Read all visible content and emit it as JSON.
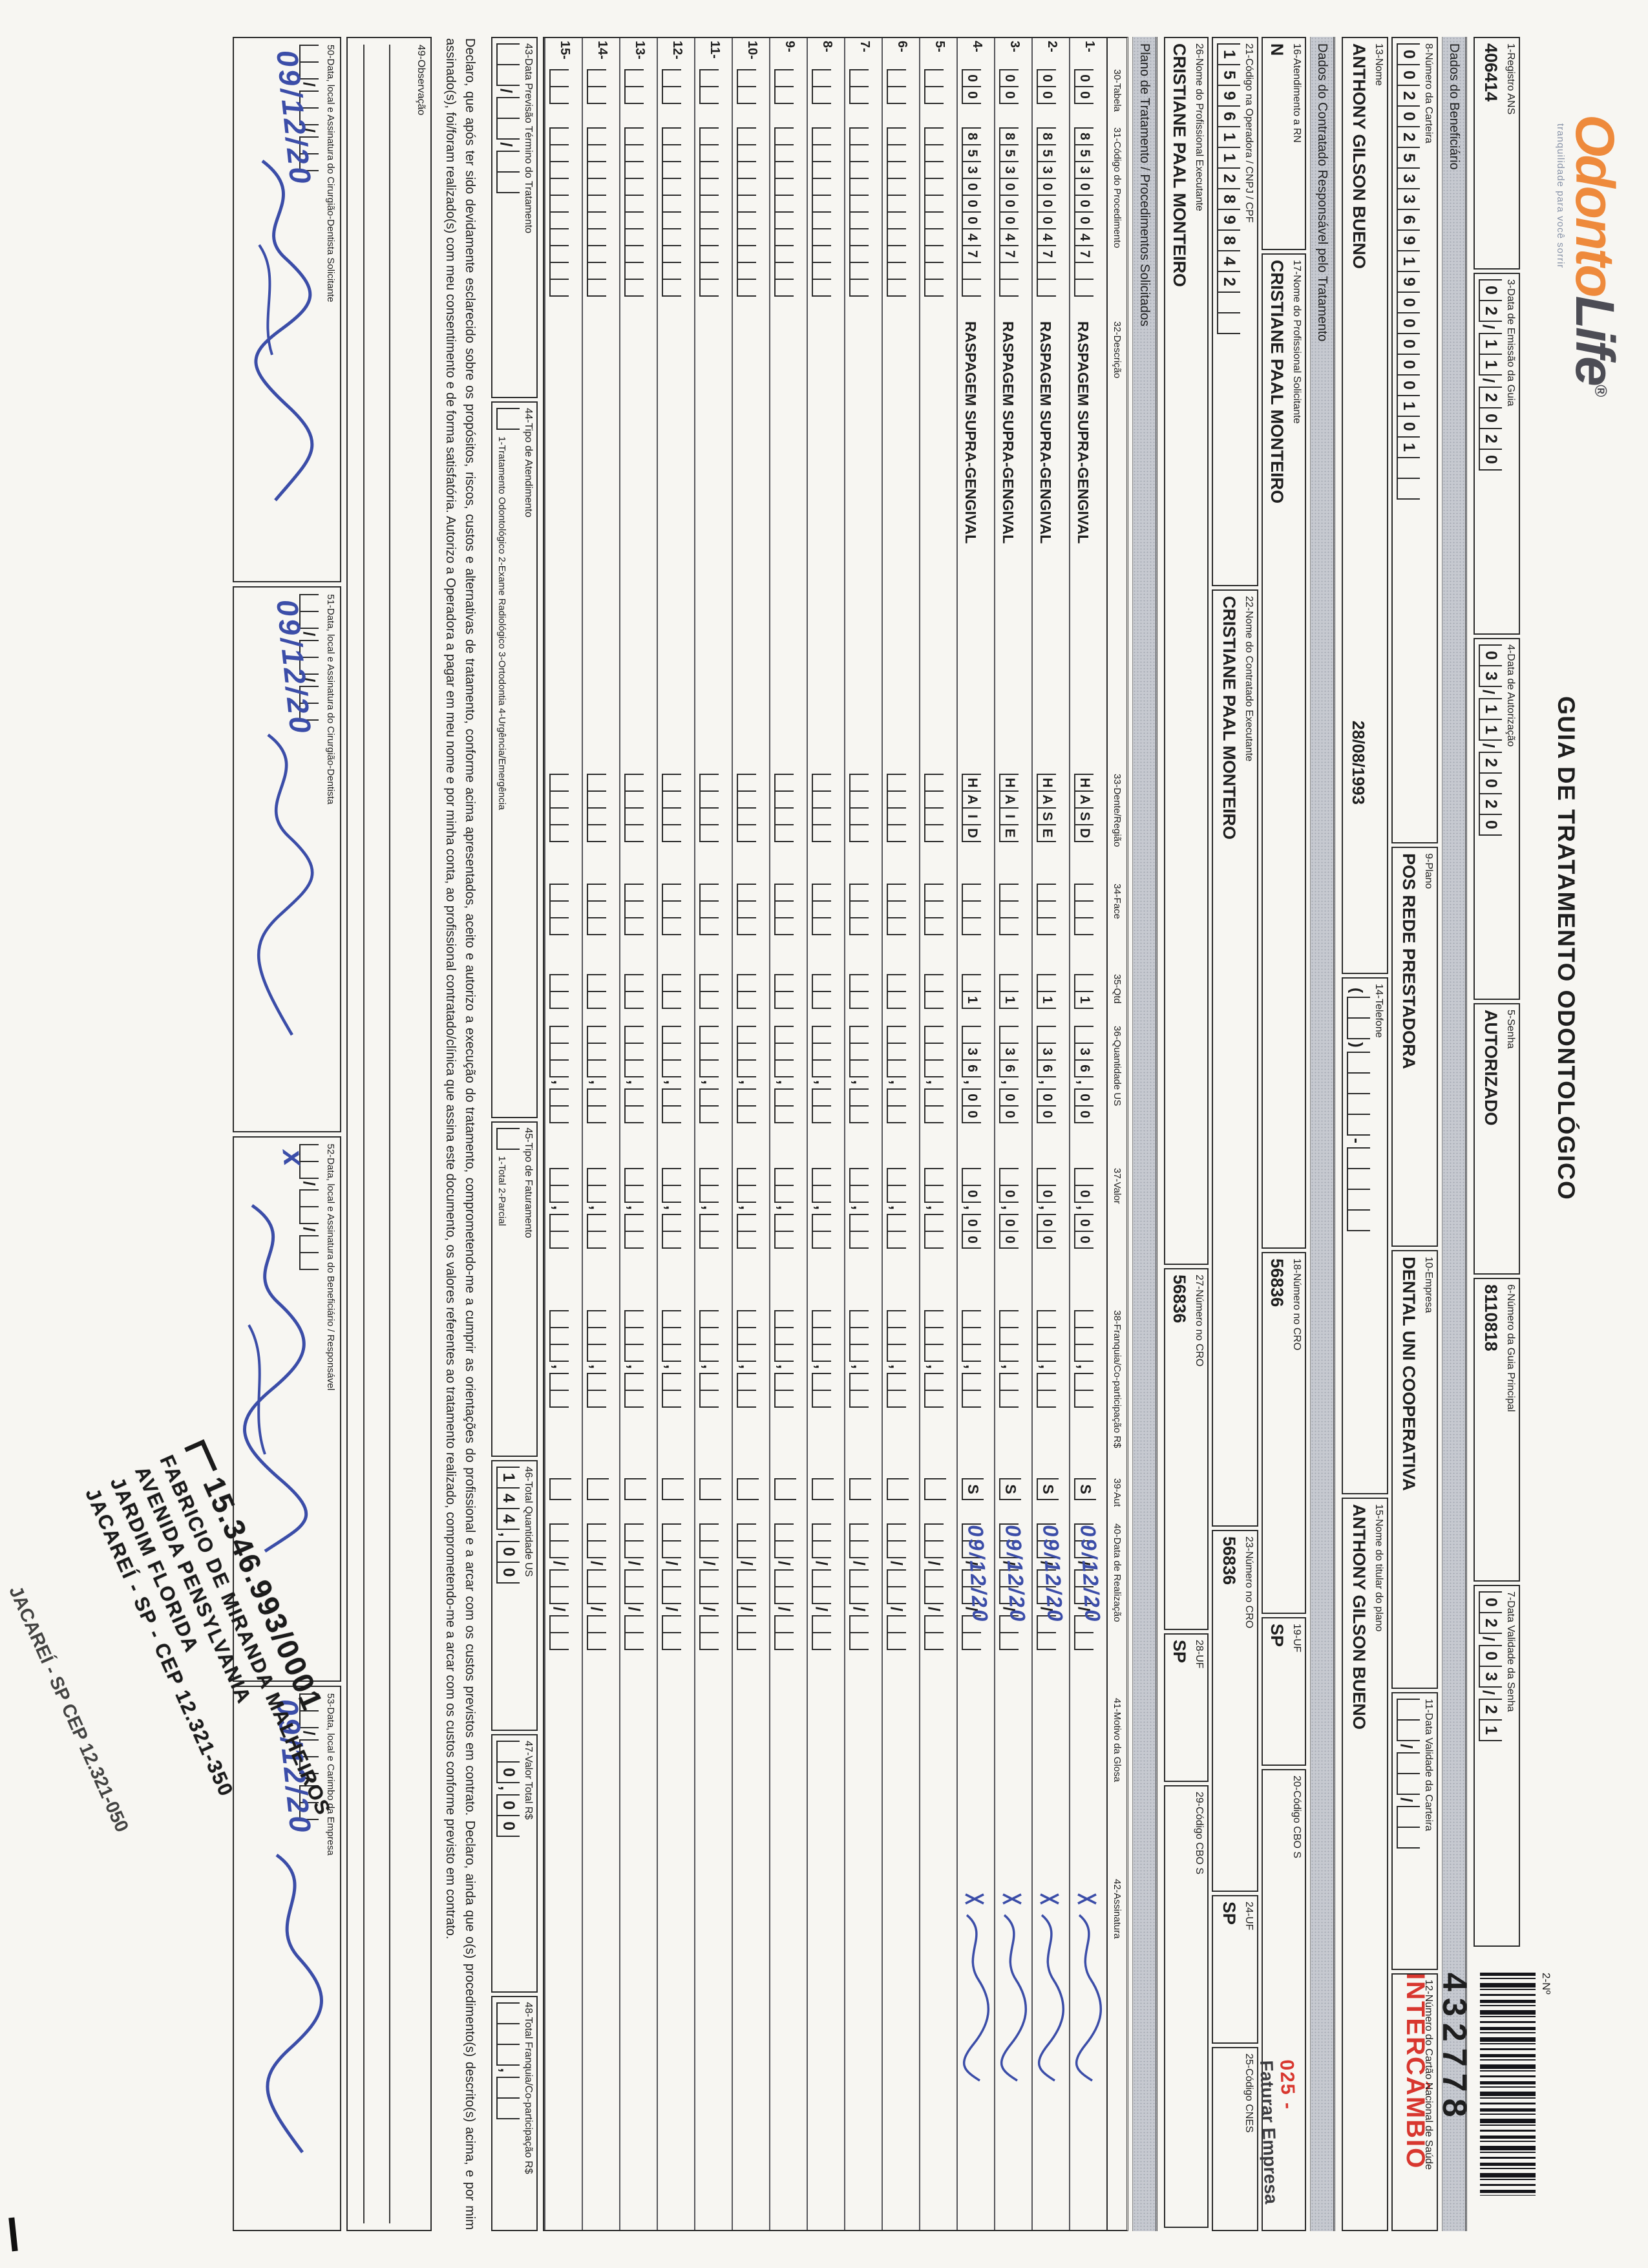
{
  "header": {
    "logo_odonto": "Odonto",
    "logo_life": "Life",
    "logo_reg": "®",
    "logo_tagline": "tranquilidade para você sorrir",
    "title": "GUIA DE TRATAMENTO ODONTOLÓGICO",
    "number_label": "2-Nº",
    "number_value": "432778",
    "intercambio": "INTERCÂMBIO"
  },
  "sections": {
    "beneficiario": "Dados do Beneficiário",
    "contratado": "Dados do Contratado Responsável pelo Tratamento",
    "plano": "Plano de Tratamento / Procedimentos Solicitados"
  },
  "fields": {
    "f1": {
      "label": "1-Registro ANS",
      "value": "406414"
    },
    "f3": {
      "label": "3-Data de Emissão da Guia",
      "comb": "0 2 / 1 1 / 2 0 2 0"
    },
    "f4": {
      "label": "4-Data de Autorização",
      "comb": "0 3 / 1 1 / 2 0 2 0"
    },
    "f5": {
      "label": "5-Senha",
      "value": "AUTORIZADO"
    },
    "f6": {
      "label": "6-Número da Guia Principal",
      "value": "8110818"
    },
    "f7": {
      "label": "7-Data Validade da Senha",
      "comb": "0 2 / 0 3 / 2 1"
    },
    "f8": {
      "label": "8-Número da Carteira",
      "comb": "0 0 2 0 2 5 3 3 6 9 1 9 0 0 0 0 0 1 0 1 _ _"
    },
    "f9": {
      "label": "9-Plano",
      "value": "POS REDE PRESTADORA"
    },
    "f10": {
      "label": "10-Empresa",
      "value": "DENTAL UNI  COOPERATIVA"
    },
    "f11": {
      "label": "11-Data Validade da Carteira",
      "comb": "_ _ / _ _ / _ _"
    },
    "f12": {
      "label": "12-Número do Cartão Nacional de Saúde",
      "value": ""
    },
    "f13": {
      "label": "13-Nome",
      "value": "ANTHONY GILSON BUENO",
      "birth": "28/08/1993"
    },
    "f14": {
      "label": "14-Telefone",
      "comb": "( _ _ ) _ _ _ _ - _ _ _ _"
    },
    "f15": {
      "label": "15-Nome do titular do plano",
      "value": "ANTHONY GILSON BUENO"
    },
    "f16": {
      "label": "16-Atendimento a RN",
      "value": "N"
    },
    "f17": {
      "label": "17-Nome do Profissional Solicitante",
      "value": "CRISTIANE PAAL MONTEIRO"
    },
    "f18": {
      "label": "18-Número no CRO",
      "value": "56836"
    },
    "f19": {
      "label": "19-UF",
      "value": "SP"
    },
    "f20": {
      "label": "20-Código CBO S",
      "value": ""
    },
    "f21": {
      "label": "21-Código na Operadora / CNPJ / CPF",
      "comb": "1 5 9 6 1 1 2 8 9 8 4 2 _ _"
    },
    "f22": {
      "label": "22-Nome do Contratado Executante",
      "value": "CRISTIANE PAAL MONTEIRO"
    },
    "f23": {
      "label": "23-Número no CRO",
      "value": "56836"
    },
    "f24": {
      "label": "24-UF",
      "value": "SP"
    },
    "f25": {
      "label": "25-Código CNES",
      "value": ""
    },
    "f26": {
      "label": "26-Nome do Profissional Executante",
      "value": "CRISTIANE PAAL MONTEIRO"
    },
    "f27": {
      "label": "27-Número no CRO",
      "value": "56836"
    },
    "f28": {
      "label": "28-UF",
      "value": "SP"
    },
    "f29": {
      "label": "29-Código CBO S",
      "value": ""
    },
    "f43": {
      "label": "43-Data Previsão Término do Tratamento",
      "comb": "_ _ / _ _ / _ _"
    },
    "f44": {
      "label": "44-Tipo de Atendimento",
      "comb": "_",
      "legend": "1-Tratamento Odontológico  2-Exame Radiológico  3-Ortodontia  4-Urgência/Emergência"
    },
    "f45": {
      "label": "45-Tipo de Faturamento",
      "comb": "_",
      "legend": "1-Total  2-Parcial"
    },
    "f46": {
      "label": "46-Total Quantidade US",
      "comb": "1 4 4 , 0 0"
    },
    "f47": {
      "label": "47-Valor Total R$",
      "comb": "_ 0 , 0 0"
    },
    "f48": {
      "label": "48-Total Franquia/Co-participação R$",
      "comb": "_ _ _ , _ _"
    },
    "f49": {
      "label": "49-Observação"
    },
    "f50": {
      "label": "50-Data, local e Assinatura do Cirurgião-Dentista Solicitante",
      "comb": "_ _ / _ _ / _ _",
      "hand": "09/12/20"
    },
    "f51": {
      "label": "51-Data, local e Assinatura do Cirurgião-Dentista",
      "comb": "_ _ / _ _ / _ _",
      "hand": "09/12/20"
    },
    "f52": {
      "label": "52-Data, local e Assinatura do Beneficiário / Responsável",
      "comb": "_ _ / _ _ / _ _",
      "hand": "x"
    },
    "f53": {
      "label": "53-Data, local e Carimbo da Empresa",
      "comb": "_ _ / _ _ / _ _",
      "hand": "09/12/20"
    }
  },
  "declaration": {
    "text": "Declaro, que após ter sido devidamente esclarecido sobre os propósitos, riscos, custos e alternativas de tratamento, conforme acima apresentados, aceito e autorizo a execução do tratamento, comprometendo-me a cumprir as orientações do profissional e a arcar com os custos previstos em contrato. Declaro, ainda que o(s) procedimento(s) descrito(s) acima, e por mim assinado(s), foi/foram realizado(s) com meu consentimento e de forma satisfatória. Autorizo a Operadora a pagar em meu nome e por minha conta, ao profissional contratado/clínica que assina este documento, os valores referentes ao tratamento realizado, comprometendo-me a arcar com os custos conforme previsto em contrato."
  },
  "stamps": {
    "cbo_code": "025 -",
    "cbo_text": "Faturar Empresa",
    "provider_cnpj": "15.346.993/0001",
    "provider_lines": [
      "FABRICIO DE MIRANDA MALHEIROS",
      "AVENIDA PENSYLVANIA",
      "JARDIM FLORIDA",
      "JACAREÍ - SP - CEP 12.321-350"
    ],
    "second_impression": "JACAREÍ - SP  CEP 12.321-050"
  },
  "table": {
    "headers": {
      "h30": "30-Tabela",
      "h31": "31-Código do Procedimento",
      "h32": "32-Descrição",
      "h33": "33-Dente/Região",
      "h34": "34-Face",
      "h35": "35-Qtd",
      "h36": "36-Quantidade US",
      "h37": "37-Valor",
      "h38": "38-Franquia/Co-participação R$",
      "h39": "39-Aut",
      "h40": "40-Data de Realização",
      "h41": "41-Motivo da Glosa",
      "h42": "42-Assinatura"
    },
    "rows": [
      {
        "num": "1-",
        "tabela": "0 0",
        "codigo": "8 5 3 0 0 0 4 7 _ _",
        "desc": "RASPAGEM SUPRA-GENGIVAL",
        "dente": "H A S D",
        "face": "_ _ _",
        "qtd": "_ 1",
        "us": "_ 3 6 , 0 0",
        "valor": "_ 0 , 0 0",
        "franquia": "_ _ _ , _ _",
        "aut": "S",
        "data": "_ _ / _ _ / _ _",
        "hand": "09/12/20",
        "sig": true
      },
      {
        "num": "2-",
        "tabela": "0 0",
        "codigo": "8 5 3 0 0 0 4 7 _ _",
        "desc": "RASPAGEM SUPRA-GENGIVAL",
        "dente": "H A S E",
        "face": "_ _ _",
        "qtd": "_ 1",
        "us": "_ 3 6 , 0 0",
        "valor": "_ 0 , 0 0",
        "franquia": "_ _ _ , _ _",
        "aut": "S",
        "data": "_ _ / _ _ / _ _",
        "hand": "09/12/20",
        "sig": true
      },
      {
        "num": "3-",
        "tabela": "0 0",
        "codigo": "8 5 3 0 0 0 4 7 _ _",
        "desc": "RASPAGEM SUPRA-GENGIVAL",
        "dente": "H A I E",
        "face": "_ _ _",
        "qtd": "_ 1",
        "us": "_ 3 6 , 0 0",
        "valor": "_ 0 , 0 0",
        "franquia": "_ _ _ , _ _",
        "aut": "S",
        "data": "_ _ / _ _ / _ _",
        "hand": "09/12/20",
        "sig": true
      },
      {
        "num": "4-",
        "tabela": "0 0",
        "codigo": "8 5 3 0 0 0 4 7 _ _",
        "desc": "RASPAGEM SUPRA-GENGIVAL",
        "dente": "H A I D",
        "face": "_ _ _",
        "qtd": "_ 1",
        "us": "_ 3 6 , 0 0",
        "valor": "_ 0 , 0 0",
        "franquia": "_ _ _ , _ _",
        "aut": "S",
        "data": "_ _ / _ _ / _ _",
        "hand": "09/12/20",
        "sig": true
      },
      {
        "num": "5-",
        "tabela": "_ _",
        "codigo": "_ _ _ _ _ _ _ _ _ _",
        "desc": "",
        "dente": "_ _ _ _",
        "face": "_ _ _",
        "qtd": "_ _",
        "us": "_ _ _ , _ _",
        "valor": "_ _ , _ _",
        "franquia": "_ _ _ , _ _",
        "aut": "",
        "data": "_ _ / _ _ / _ _",
        "hand": "",
        "sig": false
      },
      {
        "num": "6-",
        "tabela": "_ _",
        "codigo": "_ _ _ _ _ _ _ _ _ _",
        "desc": "",
        "dente": "_ _ _ _",
        "face": "_ _ _",
        "qtd": "_ _",
        "us": "_ _ _ , _ _",
        "valor": "_ _ , _ _",
        "franquia": "_ _ _ , _ _",
        "aut": "",
        "data": "_ _ / _ _ / _ _",
        "hand": "",
        "sig": false
      },
      {
        "num": "7-",
        "tabela": "_ _",
        "codigo": "_ _ _ _ _ _ _ _ _ _",
        "desc": "",
        "dente": "_ _ _ _",
        "face": "_ _ _",
        "qtd": "_ _",
        "us": "_ _ _ , _ _",
        "valor": "_ _ , _ _",
        "franquia": "_ _ _ , _ _",
        "aut": "",
        "data": "_ _ / _ _ / _ _",
        "hand": "",
        "sig": false
      },
      {
        "num": "8-",
        "tabela": "_ _",
        "codigo": "_ _ _ _ _ _ _ _ _ _",
        "desc": "",
        "dente": "_ _ _ _",
        "face": "_ _ _",
        "qtd": "_ _",
        "us": "_ _ _ , _ _",
        "valor": "_ _ , _ _",
        "franquia": "_ _ _ , _ _",
        "aut": "",
        "data": "_ _ / _ _ / _ _",
        "hand": "",
        "sig": false
      },
      {
        "num": "9-",
        "tabela": "_ _",
        "codigo": "_ _ _ _ _ _ _ _ _ _",
        "desc": "",
        "dente": "_ _ _ _",
        "face": "_ _ _",
        "qtd": "_ _",
        "us": "_ _ _ , _ _",
        "valor": "_ _ , _ _",
        "franquia": "_ _ _ , _ _",
        "aut": "",
        "data": "_ _ / _ _ / _ _",
        "hand": "",
        "sig": false
      },
      {
        "num": "10-",
        "tabela": "_ _",
        "codigo": "_ _ _ _ _ _ _ _ _ _",
        "desc": "",
        "dente": "_ _ _ _",
        "face": "_ _ _",
        "qtd": "_ _",
        "us": "_ _ _ , _ _",
        "valor": "_ _ , _ _",
        "franquia": "_ _ _ , _ _",
        "aut": "",
        "data": "_ _ / _ _ / _ _",
        "hand": "",
        "sig": false
      },
      {
        "num": "11-",
        "tabela": "_ _",
        "codigo": "_ _ _ _ _ _ _ _ _ _",
        "desc": "",
        "dente": "_ _ _ _",
        "face": "_ _ _",
        "qtd": "_ _",
        "us": "_ _ _ , _ _",
        "valor": "_ _ , _ _",
        "franquia": "_ _ _ , _ _",
        "aut": "",
        "data": "_ _ / _ _ / _ _",
        "hand": "",
        "sig": false
      },
      {
        "num": "12-",
        "tabela": "_ _",
        "codigo": "_ _ _ _ _ _ _ _ _ _",
        "desc": "",
        "dente": "_ _ _ _",
        "face": "_ _ _",
        "qtd": "_ _",
        "us": "_ _ _ , _ _",
        "valor": "_ _ , _ _",
        "franquia": "_ _ _ , _ _",
        "aut": "",
        "data": "_ _ / _ _ / _ _",
        "hand": "",
        "sig": false
      },
      {
        "num": "13-",
        "tabela": "_ _",
        "codigo": "_ _ _ _ _ _ _ _ _ _",
        "desc": "",
        "dente": "_ _ _ _",
        "face": "_ _ _",
        "qtd": "_ _",
        "us": "_ _ _ , _ _",
        "valor": "_ _ , _ _",
        "franquia": "_ _ _ , _ _",
        "aut": "",
        "data": "_ _ / _ _ / _ _",
        "hand": "",
        "sig": false
      },
      {
        "num": "14-",
        "tabela": "_ _",
        "codigo": "_ _ _ _ _ _ _ _ _ _",
        "desc": "",
        "dente": "_ _ _ _",
        "face": "_ _ _",
        "qtd": "_ _",
        "us": "_ _ _ , _ _",
        "valor": "_ _ , _ _",
        "franquia": "_ _ _ , _ _",
        "aut": "",
        "data": "_ _ / _ _ / _ _",
        "hand": "",
        "sig": false
      },
      {
        "num": "15-",
        "tabela": "_ _",
        "codigo": "_ _ _ _ _ _ _ _ _ _",
        "desc": "",
        "dente": "_ _ _ _",
        "face": "_ _ _",
        "qtd": "_ _",
        "us": "_ _ _ , _ _",
        "valor": "_ _ , _ _",
        "franquia": "_ _ _ , _ _",
        "aut": "",
        "data": "_ _ / _ _ / _ _",
        "hand": "",
        "sig": false
      }
    ]
  }
}
